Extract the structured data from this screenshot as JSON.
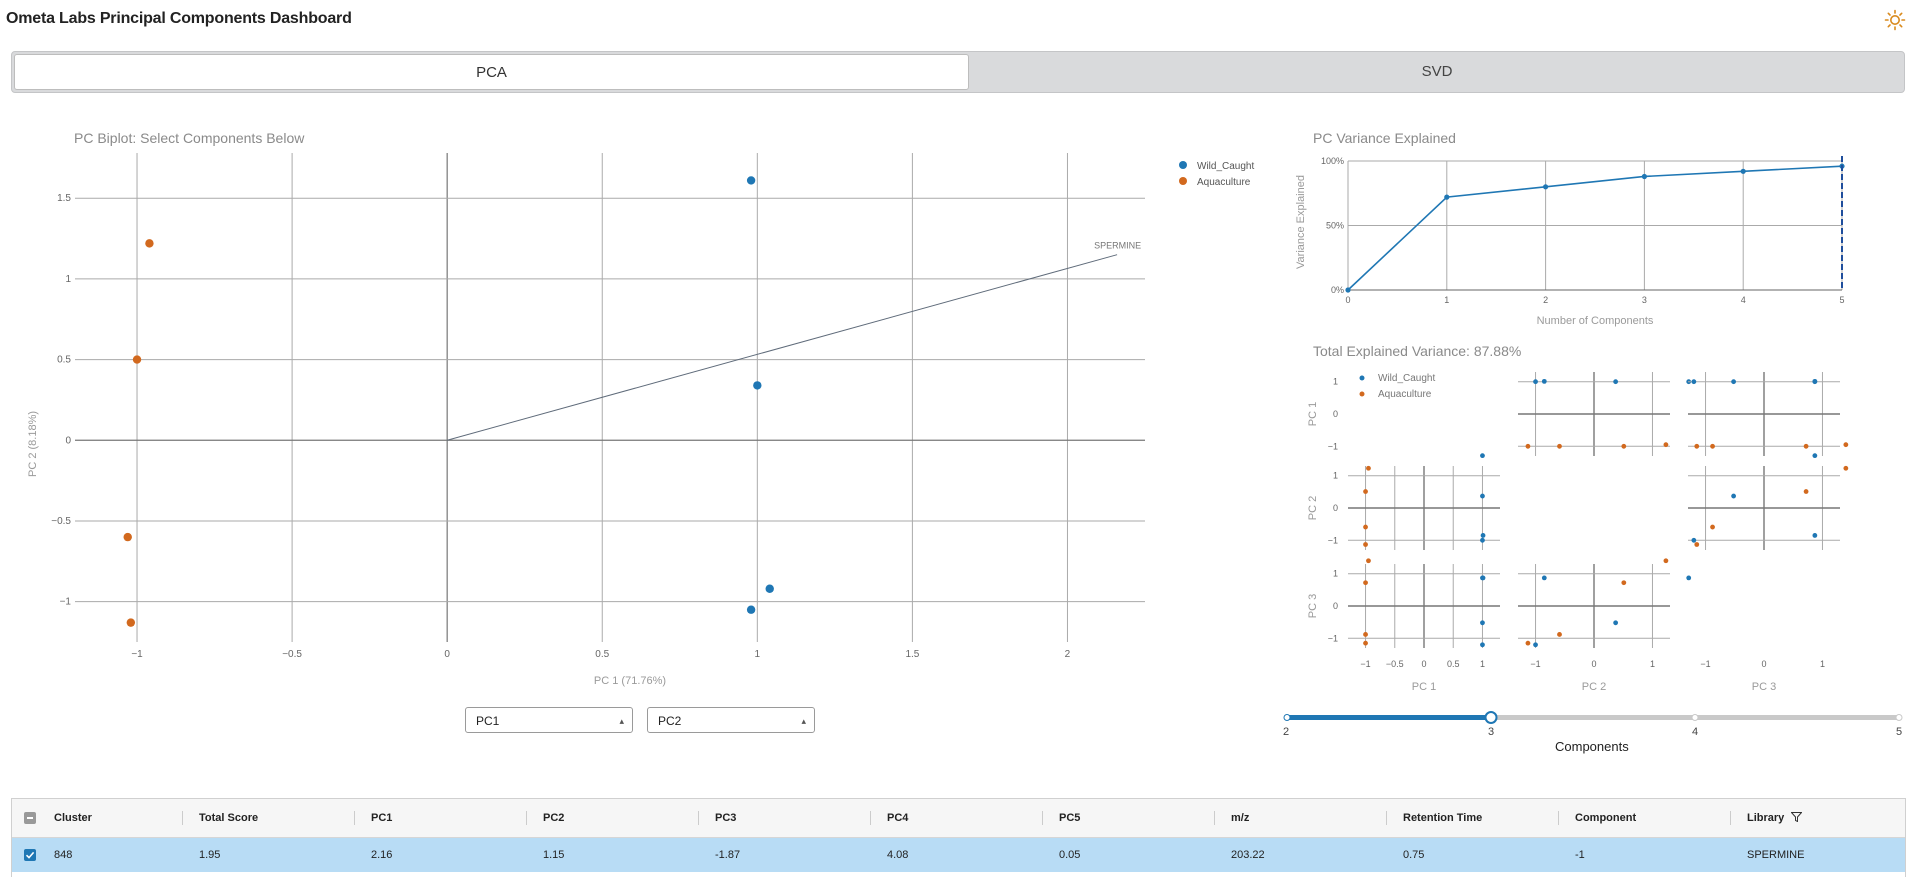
{
  "app": {
    "title": "Ometa Labs Principal Components Dashboard",
    "theme_icon": "sun-icon"
  },
  "tabs": [
    {
      "label": "PCA",
      "active": true
    },
    {
      "label": "SVD",
      "active": false
    }
  ],
  "colors": {
    "wild_caught": "#1f77b4",
    "aquaculture": "#d2691e",
    "selected_row": "#b8dcf5",
    "slider": "#1f77b4"
  },
  "biplot": {
    "title": "PC Biplot: Select Components Below",
    "x_label": "PC 1 (71.76%)",
    "y_label": "PC 2 (8.18%)",
    "x_ticks": [
      "−1",
      "−0.5",
      "0",
      "0.5",
      "1",
      "1.5",
      "2"
    ],
    "y_ticks": [
      "1.5",
      "1",
      "0.5",
      "0",
      "−0.5",
      "−1"
    ],
    "loading_label": "SPERMINE",
    "legend": [
      "Wild_Caught",
      "Aquaculture"
    ]
  },
  "variance": {
    "title": "PC Variance Explained",
    "x_label": "Number of Components",
    "y_label": "Variance Explained",
    "y_ticks": [
      "100%",
      "50%",
      "0%"
    ],
    "x_ticks": [
      "0",
      "1",
      "2",
      "3",
      "4",
      "5"
    ],
    "total_label": "Total Explained Variance: 87.88%"
  },
  "matrix": {
    "legend": [
      "Wild_Caught",
      "Aquaculture"
    ],
    "row_labels": [
      "PC 1",
      "PC 2",
      "PC 3"
    ],
    "col_labels": [
      "PC 1",
      "PC 2",
      "PC 3"
    ],
    "y_ticks": [
      "1",
      "0",
      "−1"
    ],
    "x_ticks_a": [
      "−1",
      "−0.5",
      "0",
      "0.5",
      "1"
    ],
    "x_ticks_b": [
      "−1",
      "0",
      "1"
    ],
    "x_ticks_c": [
      "−1",
      "0",
      "1"
    ]
  },
  "selects": {
    "x": "PC1",
    "y": "PC2"
  },
  "slider": {
    "ticks": [
      "2",
      "3",
      "4",
      "5"
    ],
    "label": "Components",
    "value": 3,
    "min": 2,
    "max": 5
  },
  "table": {
    "columns": [
      "Cluster",
      "Total Score",
      "PC1",
      "PC2",
      "PC3",
      "PC4",
      "PC5",
      "m/z",
      "Retention Time",
      "Component",
      "Library"
    ],
    "rows": [
      {
        "cells": [
          "848",
          "1.95",
          "2.16",
          "1.15",
          "-1.87",
          "4.08",
          "0.05",
          "203.22",
          "0.75",
          "-1",
          "SPERMINE"
        ],
        "selected": true
      }
    ]
  },
  "chart_data": [
    {
      "type": "scatter",
      "title": "PC Biplot: Select Components Below",
      "xlabel": "PC 1 (71.76%)",
      "ylabel": "PC 2 (8.18%)",
      "xlim": [
        -1.2,
        2.25
      ],
      "ylim": [
        -1.25,
        1.78
      ],
      "series": [
        {
          "name": "Wild_Caught",
          "x": [
            0.98,
            1.0,
            0.98,
            1.04
          ],
          "y": [
            1.61,
            0.34,
            -1.05,
            -0.92
          ]
        },
        {
          "name": "Aquaculture",
          "x": [
            -0.96,
            -1.0,
            -1.03,
            -1.02
          ],
          "y": [
            1.22,
            0.5,
            -0.6,
            -1.13
          ]
        }
      ],
      "loadings": [
        {
          "label": "SPERMINE",
          "x": 2.16,
          "y": 1.15
        }
      ],
      "legend": "top-right",
      "grid": true
    },
    {
      "type": "line",
      "title": "PC Variance Explained",
      "xlabel": "Number of Components",
      "ylabel": "Variance Explained",
      "x": [
        0,
        1,
        2,
        3,
        4,
        5
      ],
      "y": [
        0,
        0.72,
        0.8,
        0.88,
        0.92,
        0.96
      ],
      "ylim": [
        0,
        1
      ],
      "marker_x": 5,
      "grid": true
    },
    {
      "type": "scatter",
      "title": "Total Explained Variance: 87.88%",
      "dimensions": [
        "PC 1",
        "PC 2",
        "PC 3"
      ],
      "series": [
        {
          "name": "Wild_Caught",
          "pc1": [
            1.0,
            1.0,
            1.01,
            1.0
          ],
          "pc2": [
            1.62,
            0.37,
            -0.85,
            -1.0
          ],
          "pc3": [
            0.87,
            -0.52,
            0.87,
            -1.2
          ]
        },
        {
          "name": "Aquaculture",
          "pc1": [
            -0.95,
            -1.0,
            -1.0,
            -1.0
          ],
          "pc2": [
            1.23,
            0.51,
            -0.59,
            -1.13
          ],
          "pc3": [
            1.4,
            0.72,
            -0.88,
            -1.15
          ]
        }
      ],
      "legend": "top-left",
      "grid": true
    }
  ]
}
